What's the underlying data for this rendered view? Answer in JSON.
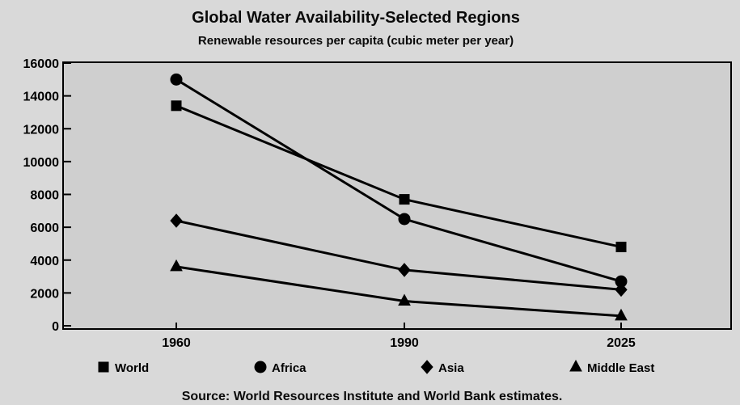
{
  "chart_data": {
    "type": "line",
    "title": "Global Water Availability-Selected Regions",
    "subtitle": "Renewable resources per capita (cubic meter per year)",
    "x": [
      "1960",
      "1990",
      "2025"
    ],
    "ylim": [
      0,
      16000
    ],
    "yticks": [
      "0",
      "2000",
      "4000",
      "6000",
      "8000",
      "10000",
      "12000",
      "14000",
      "16000"
    ],
    "series": [
      {
        "name": "World",
        "marker": "square",
        "values": [
          13400,
          7700,
          4800
        ]
      },
      {
        "name": "Africa",
        "marker": "circle",
        "values": [
          15000,
          6500,
          2700
        ]
      },
      {
        "name": "Asia",
        "marker": "diamond",
        "values": [
          6400,
          3400,
          2200
        ]
      },
      {
        "name": "Middle East",
        "marker": "triangle",
        "values": [
          3600,
          1500,
          600
        ]
      }
    ],
    "legend_position": "bottom",
    "grid": false
  },
  "source": "Source: World Resources Institute and World Bank estimates.",
  "colors": {
    "background": "#d9d9d9",
    "plot_background": "#cfcfcf",
    "line": "#000000"
  }
}
